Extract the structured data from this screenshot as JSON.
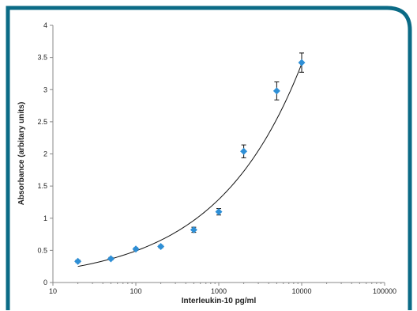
{
  "colors": {
    "frame": "#0b6b86",
    "marker": "#2e8fd6",
    "curve": "#111111",
    "axis": "#888888"
  },
  "chart_data": {
    "type": "scatter",
    "title": "",
    "xlabel": "Interleukin-10 pg/ml",
    "ylabel": "Absorbance (arbitary units)",
    "xscale": "log",
    "xlim": [
      10,
      100000
    ],
    "ylim": [
      0,
      4
    ],
    "x_ticks": [
      10,
      100,
      1000,
      10000,
      100000
    ],
    "x_tick_labels": [
      "10",
      "100",
      "1000",
      "10000",
      "100000"
    ],
    "y_ticks": [
      0,
      0.5,
      1,
      1.5,
      2,
      2.5,
      3,
      3.5,
      4
    ],
    "y_tick_labels": [
      "0",
      "0.5",
      "1",
      "1.5",
      "2",
      "2.5",
      "3",
      "3.5",
      "4"
    ],
    "grid": false,
    "legend": "none",
    "series": [
      {
        "marker": "diamond",
        "x": [
          20,
          50,
          100,
          200,
          500,
          1000,
          2000,
          5000,
          10000
        ],
        "y": [
          0.33,
          0.37,
          0.52,
          0.56,
          0.82,
          1.1,
          2.04,
          2.98,
          3.42
        ],
        "error": [
          0.02,
          0.02,
          0.02,
          0.02,
          0.04,
          0.05,
          0.1,
          0.14,
          0.15
        ]
      }
    ],
    "trendline": {
      "type": "power",
      "x_range": [
        20,
        10000
      ],
      "y_range": [
        0.25,
        3.4
      ]
    }
  }
}
